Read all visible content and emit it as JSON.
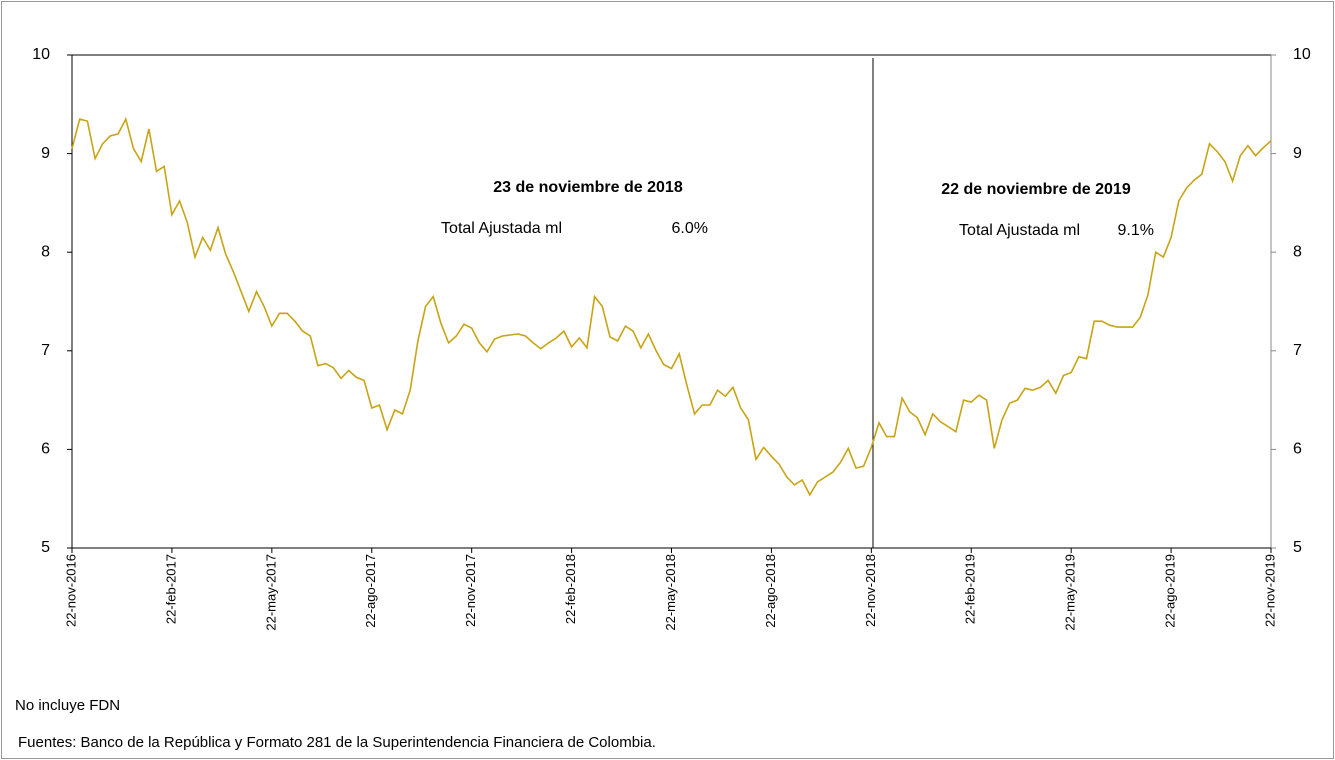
{
  "chart_data": {
    "type": "line",
    "categories": [
      "22-nov-2016",
      null,
      null,
      null,
      null,
      null,
      null,
      null,
      null,
      null,
      null,
      null,
      null,
      "22-feb-2017",
      null,
      null,
      null,
      null,
      null,
      null,
      null,
      null,
      null,
      null,
      null,
      null,
      "22-may-2017",
      null,
      null,
      null,
      null,
      null,
      null,
      null,
      null,
      null,
      null,
      null,
      null,
      "22-ago-2017",
      null,
      null,
      null,
      null,
      null,
      null,
      null,
      null,
      null,
      null,
      null,
      null,
      "22-nov-2017",
      null,
      null,
      null,
      null,
      null,
      null,
      null,
      null,
      null,
      null,
      null,
      null,
      "22-feb-2018",
      null,
      null,
      null,
      null,
      null,
      null,
      null,
      null,
      null,
      null,
      null,
      null,
      "22-may-2018",
      null,
      null,
      null,
      null,
      null,
      null,
      null,
      null,
      null,
      null,
      null,
      null,
      "22-ago-2018",
      null,
      null,
      null,
      null,
      null,
      null,
      null,
      null,
      null,
      null,
      null,
      null,
      "22-nov-2018",
      null,
      null,
      null,
      null,
      null,
      null,
      null,
      null,
      null,
      null,
      null,
      null,
      "22-feb-2019",
      null,
      null,
      null,
      null,
      null,
      null,
      null,
      null,
      null,
      null,
      null,
      null,
      "22-may-2019",
      null,
      null,
      null,
      null,
      null,
      null,
      null,
      null,
      null,
      null,
      null,
      null,
      "22-ago-2019",
      null,
      null,
      null,
      null,
      null,
      null,
      null,
      null,
      null,
      null,
      null,
      null,
      "22-nov-2019"
    ],
    "series": [
      {
        "color": "#c8a415",
        "values": [
          9.05,
          9.35,
          9.33,
          8.95,
          9.1,
          9.18,
          9.2,
          9.35,
          9.05,
          8.92,
          9.25,
          8.82,
          8.87,
          8.38,
          8.52,
          8.3,
          7.95,
          8.15,
          8.02,
          8.25,
          7.98,
          7.8,
          7.6,
          7.4,
          7.6,
          7.45,
          7.25,
          7.38,
          7.38,
          7.3,
          7.2,
          7.15,
          6.85,
          6.87,
          6.83,
          6.72,
          6.8,
          6.73,
          6.7,
          6.42,
          6.45,
          6.2,
          6.4,
          6.36,
          6.6,
          7.1,
          7.45,
          7.55,
          7.28,
          7.08,
          7.15,
          7.27,
          7.23,
          7.08,
          6.99,
          7.12,
          7.15,
          7.16,
          7.17,
          7.15,
          7.08,
          7.02,
          7.08,
          7.13,
          7.2,
          7.04,
          7.13,
          7.03,
          7.55,
          7.45,
          7.14,
          7.1,
          7.25,
          7.2,
          7.03,
          7.17,
          7.0,
          6.86,
          6.82,
          6.97,
          6.65,
          6.36,
          6.45,
          6.45,
          6.6,
          6.54,
          6.63,
          6.42,
          6.3,
          5.9,
          6.02,
          5.93,
          5.85,
          5.72,
          5.64,
          5.69,
          5.54,
          5.67,
          5.72,
          5.77,
          5.87,
          6.01,
          5.81,
          5.83,
          6.02,
          6.27,
          6.13,
          6.13,
          6.52,
          6.38,
          6.32,
          6.15,
          6.36,
          6.28,
          6.23,
          6.18,
          6.5,
          6.48,
          6.55,
          6.5,
          6.01,
          6.3,
          6.47,
          6.5,
          6.62,
          6.6,
          6.63,
          6.7,
          6.57,
          6.75,
          6.78,
          6.94,
          6.92,
          7.3,
          7.3,
          7.26,
          7.24,
          7.24,
          7.24,
          7.34,
          7.57,
          8.0,
          7.95,
          8.15,
          8.52,
          8.65,
          8.73,
          8.79,
          9.1,
          9.02,
          8.92,
          8.72,
          8.98,
          9.08,
          8.98,
          9.06,
          9.13
        ]
      }
    ],
    "ylim": [
      5,
      10
    ],
    "yticks": [
      5,
      6,
      7,
      8,
      9,
      10
    ],
    "annotations": [
      {
        "title": "23 de noviembre de 2018",
        "text": "Total Ajustada ml",
        "value": "6.0%"
      },
      {
        "title": "22 de noviembre de 2019",
        "text": "Total Ajustada ml",
        "value": "9.1%"
      }
    ],
    "notes": [
      "No incluye FDN",
      "Fuentes: Banco de la República y Formato 281 de la Superintendencia Financiera de Colombia."
    ]
  }
}
